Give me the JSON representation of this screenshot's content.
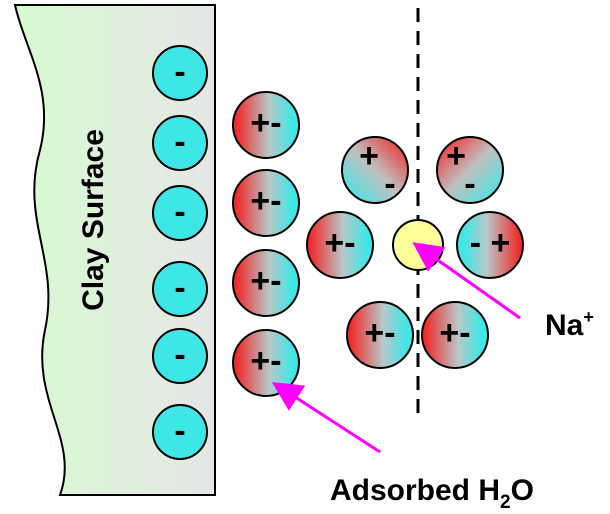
{
  "surface": {
    "label": "Clay Surface",
    "charges": [
      "-",
      "-",
      "-",
      "-",
      "-",
      "-"
    ]
  },
  "molecules": [
    {
      "signs": [
        "+-"
      ]
    },
    {
      "signs": [
        "+-"
      ]
    },
    {
      "signs": [
        "+-"
      ]
    },
    {
      "signs": [
        "+-"
      ]
    },
    {
      "signs": [
        "+",
        "-"
      ]
    },
    {
      "signs": [
        "+",
        "-"
      ]
    },
    {
      "signs": [
        "+-"
      ]
    },
    {
      "signs": [
        "- +"
      ]
    },
    {
      "signs": [
        "+-"
      ]
    },
    {
      "signs": [
        "+-"
      ]
    }
  ],
  "ion": {
    "label": "Na",
    "charge": "+"
  },
  "annotation": {
    "text": "Adsorbed H",
    "subscript": "2",
    "suffix": "O"
  }
}
